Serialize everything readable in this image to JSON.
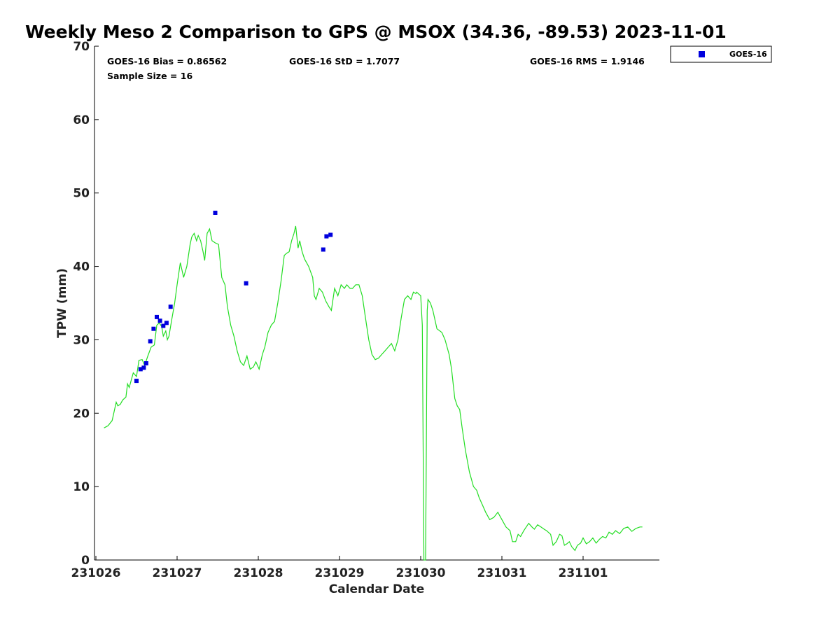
{
  "chart_data": {
    "type": "scatter",
    "title": "Weekly Meso 2 Comparison to GPS @ MSOX (34.36, -89.53) 2023-11-01",
    "xlabel": "Calendar Date",
    "ylabel": "TPW (mm)",
    "x_ticks": [
      "231026",
      "231027",
      "231028",
      "231029",
      "231030",
      "231031",
      "231101"
    ],
    "xlim_days": [
      0,
      6.95
    ],
    "ylim": [
      0,
      70
    ],
    "y_ticks": [
      0,
      10,
      20,
      30,
      40,
      50,
      60,
      70
    ],
    "grid": false,
    "legend_position": "top-right",
    "stats": {
      "bias": "GOES-16 Bias = 0.86562",
      "std": "GOES-16 StD = 1.7077",
      "rms": "GOES-16 RMS = 1.9146",
      "sample": "Sample Size = 16"
    },
    "colors": {
      "gps_line": "#22dd22",
      "goes_marker": "#0000dd"
    },
    "series": [
      {
        "kind": "line",
        "points": [
          [
            0.1,
            18
          ],
          [
            0.15,
            18.3
          ],
          [
            0.2,
            19
          ],
          [
            0.23,
            20.5
          ],
          [
            0.25,
            21.5
          ],
          [
            0.27,
            21
          ],
          [
            0.3,
            21.2
          ],
          [
            0.33,
            21.8
          ],
          [
            0.37,
            22.2
          ],
          [
            0.39,
            24
          ],
          [
            0.41,
            23.5
          ],
          [
            0.43,
            24.3
          ],
          [
            0.46,
            25.5
          ],
          [
            0.5,
            25
          ],
          [
            0.53,
            27.2
          ],
          [
            0.57,
            27.3
          ],
          [
            0.6,
            26.5
          ],
          [
            0.64,
            27.8
          ],
          [
            0.68,
            29
          ],
          [
            0.72,
            29.3
          ],
          [
            0.75,
            32
          ],
          [
            0.78,
            32.3
          ],
          [
            0.81,
            31.8
          ],
          [
            0.83,
            30.5
          ],
          [
            0.86,
            31.2
          ],
          [
            0.88,
            30
          ],
          [
            0.9,
            30.5
          ],
          [
            0.93,
            32.5
          ],
          [
            0.97,
            35
          ],
          [
            1.0,
            37.5
          ],
          [
            1.04,
            40.5
          ],
          [
            1.08,
            38.5
          ],
          [
            1.12,
            40
          ],
          [
            1.16,
            43
          ],
          [
            1.18,
            44
          ],
          [
            1.21,
            44.5
          ],
          [
            1.24,
            43.5
          ],
          [
            1.26,
            44.2
          ],
          [
            1.29,
            43.5
          ],
          [
            1.32,
            42
          ],
          [
            1.34,
            40.8
          ],
          [
            1.37,
            44.5
          ],
          [
            1.4,
            45.1
          ],
          [
            1.43,
            43.5
          ],
          [
            1.47,
            43.2
          ],
          [
            1.51,
            43
          ],
          [
            1.55,
            38.5
          ],
          [
            1.59,
            37.5
          ],
          [
            1.62,
            34.5
          ],
          [
            1.66,
            32
          ],
          [
            1.7,
            30.5
          ],
          [
            1.74,
            28.5
          ],
          [
            1.78,
            27
          ],
          [
            1.82,
            26.5
          ],
          [
            1.86,
            27.8
          ],
          [
            1.9,
            26
          ],
          [
            1.94,
            26.3
          ],
          [
            1.97,
            27
          ],
          [
            2.01,
            26
          ],
          [
            2.05,
            28
          ],
          [
            2.08,
            29
          ],
          [
            2.12,
            31
          ],
          [
            2.16,
            32
          ],
          [
            2.2,
            32.5
          ],
          [
            2.24,
            35
          ],
          [
            2.28,
            38
          ],
          [
            2.32,
            41.5
          ],
          [
            2.35,
            41.8
          ],
          [
            2.38,
            42
          ],
          [
            2.41,
            43.5
          ],
          [
            2.44,
            44.5
          ],
          [
            2.46,
            45.5
          ],
          [
            2.49,
            42.5
          ],
          [
            2.51,
            43.5
          ],
          [
            2.54,
            42
          ],
          [
            2.57,
            41
          ],
          [
            2.62,
            40
          ],
          [
            2.67,
            38.5
          ],
          [
            2.69,
            36
          ],
          [
            2.71,
            35.5
          ],
          [
            2.75,
            37
          ],
          [
            2.79,
            36.5
          ],
          [
            2.83,
            35.3
          ],
          [
            2.87,
            34.5
          ],
          [
            2.9,
            34
          ],
          [
            2.94,
            37
          ],
          [
            2.98,
            36
          ],
          [
            3.02,
            37.5
          ],
          [
            3.06,
            37
          ],
          [
            3.09,
            37.5
          ],
          [
            3.13,
            37
          ],
          [
            3.16,
            37
          ],
          [
            3.2,
            37.5
          ],
          [
            3.24,
            37.5
          ],
          [
            3.28,
            36
          ],
          [
            3.32,
            33
          ],
          [
            3.36,
            30
          ],
          [
            3.4,
            28
          ],
          [
            3.44,
            27.3
          ],
          [
            3.48,
            27.5
          ],
          [
            3.52,
            28
          ],
          [
            3.56,
            28.5
          ],
          [
            3.6,
            29
          ],
          [
            3.64,
            29.5
          ],
          [
            3.68,
            28.5
          ],
          [
            3.72,
            30
          ],
          [
            3.76,
            33
          ],
          [
            3.8,
            35.5
          ],
          [
            3.84,
            36
          ],
          [
            3.88,
            35.5
          ],
          [
            3.91,
            36.5
          ],
          [
            3.94,
            36.3
          ],
          [
            3.95,
            36.5
          ],
          [
            4.0,
            36
          ],
          [
            4.02,
            32
          ],
          [
            4.04,
            0
          ],
          [
            4.06,
            0
          ],
          [
            4.08,
            34
          ],
          [
            4.09,
            35.5
          ],
          [
            4.12,
            35
          ],
          [
            4.15,
            34
          ],
          [
            4.2,
            31.5
          ],
          [
            4.26,
            31
          ],
          [
            4.3,
            30
          ],
          [
            4.35,
            28
          ],
          [
            4.38,
            26
          ],
          [
            4.42,
            22
          ],
          [
            4.45,
            21
          ],
          [
            4.48,
            20.5
          ],
          [
            4.51,
            18
          ],
          [
            4.55,
            15
          ],
          [
            4.6,
            12
          ],
          [
            4.65,
            10
          ],
          [
            4.69,
            9.5
          ],
          [
            4.72,
            8.5
          ],
          [
            4.76,
            7.5
          ],
          [
            4.8,
            6.5
          ],
          [
            4.85,
            5.5
          ],
          [
            4.9,
            5.8
          ],
          [
            4.95,
            6.5
          ],
          [
            5.0,
            5.5
          ],
          [
            5.05,
            4.5
          ],
          [
            5.1,
            4
          ],
          [
            5.13,
            2.5
          ],
          [
            5.17,
            2.5
          ],
          [
            5.2,
            3.5
          ],
          [
            5.23,
            3.2
          ],
          [
            5.27,
            4
          ],
          [
            5.3,
            4.5
          ],
          [
            5.33,
            5
          ],
          [
            5.37,
            4.5
          ],
          [
            5.4,
            4.2
          ],
          [
            5.44,
            4.8
          ],
          [
            5.48,
            4.5
          ],
          [
            5.52,
            4.2
          ],
          [
            5.55,
            4
          ],
          [
            5.6,
            3.5
          ],
          [
            5.63,
            2
          ],
          [
            5.67,
            2.5
          ],
          [
            5.71,
            3.5
          ],
          [
            5.74,
            3.3
          ],
          [
            5.77,
            2
          ],
          [
            5.8,
            2.2
          ],
          [
            5.83,
            2.5
          ],
          [
            5.86,
            1.8
          ],
          [
            5.9,
            1.3
          ],
          [
            5.93,
            2
          ],
          [
            5.97,
            2.3
          ],
          [
            6.0,
            3
          ],
          [
            6.04,
            2.2
          ],
          [
            6.08,
            2.5
          ],
          [
            6.12,
            3
          ],
          [
            6.16,
            2.3
          ],
          [
            6.2,
            2.8
          ],
          [
            6.24,
            3.2
          ],
          [
            6.28,
            3
          ],
          [
            6.32,
            3.8
          ],
          [
            6.36,
            3.5
          ],
          [
            6.4,
            4
          ],
          [
            6.45,
            3.6
          ],
          [
            6.5,
            4.3
          ],
          [
            6.55,
            4.5
          ],
          [
            6.6,
            3.9
          ],
          [
            6.65,
            4.3
          ],
          [
            6.7,
            4.5
          ],
          [
            6.73,
            4.5
          ]
        ]
      },
      {
        "kind": "scatter",
        "name": "GOES-16",
        "points": [
          [
            0.5,
            24.4
          ],
          [
            0.55,
            26
          ],
          [
            0.59,
            26.2
          ],
          [
            0.62,
            26.8
          ],
          [
            0.67,
            29.8
          ],
          [
            0.71,
            31.5
          ],
          [
            0.75,
            33.1
          ],
          [
            0.79,
            32.6
          ],
          [
            0.83,
            31.9
          ],
          [
            0.87,
            32.3
          ],
          [
            0.92,
            34.5
          ],
          [
            1.47,
            47.3
          ],
          [
            1.85,
            37.7
          ],
          [
            2.8,
            42.3
          ],
          [
            2.84,
            44.1
          ],
          [
            2.89,
            44.3
          ]
        ]
      }
    ]
  }
}
